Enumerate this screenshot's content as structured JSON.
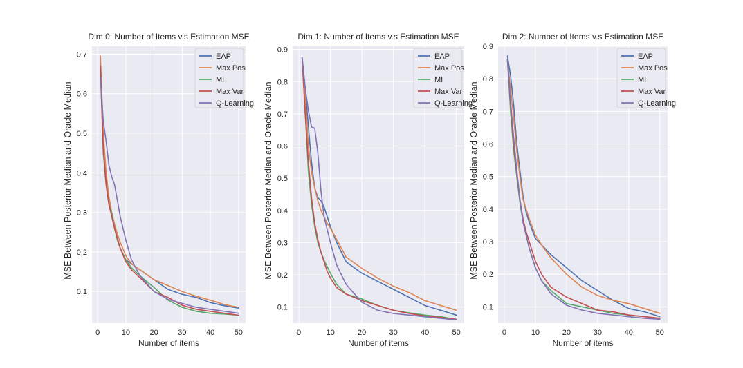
{
  "chart_data": [
    {
      "type": "line",
      "title": "Dim 0: Number of Items v.s Estimation MSE",
      "xlabel": "Number of items",
      "ylabel": "MSE Between Posterior Median and Oracle Median",
      "xlim": [
        -2,
        52.5
      ],
      "ylim": [
        0.02,
        0.72
      ],
      "xticks": [
        0,
        10,
        20,
        30,
        40,
        50
      ],
      "yticks": [
        0.1,
        0.2,
        0.3,
        0.4,
        0.5,
        0.6,
        0.7
      ],
      "legend_location": "top-right",
      "x": [
        1,
        2,
        3,
        4,
        5,
        6,
        7,
        8,
        10,
        12,
        15,
        20,
        25,
        30,
        35,
        40,
        45,
        50
      ],
      "series": [
        {
          "name": "EAP",
          "color": "#4c72b0",
          "values": [
            0.665,
            0.47,
            0.38,
            0.33,
            0.29,
            0.26,
            0.23,
            0.21,
            0.18,
            0.17,
            0.155,
            0.13,
            0.105,
            0.093,
            0.085,
            0.072,
            0.064,
            0.058
          ]
        },
        {
          "name": "Max Pos",
          "color": "#dd8452",
          "values": [
            0.695,
            0.5,
            0.4,
            0.34,
            0.3,
            0.27,
            0.245,
            0.225,
            0.19,
            0.17,
            0.155,
            0.13,
            0.115,
            0.1,
            0.088,
            0.078,
            0.067,
            0.06
          ]
        },
        {
          "name": "MI",
          "color": "#55a868",
          "values": [
            0.66,
            0.45,
            0.37,
            0.32,
            0.3,
            0.26,
            0.23,
            0.21,
            0.18,
            0.16,
            0.14,
            0.11,
            0.078,
            0.06,
            0.05,
            0.045,
            0.043,
            0.04
          ]
        },
        {
          "name": "Max Var",
          "color": "#c44e52",
          "values": [
            0.67,
            0.46,
            0.37,
            0.32,
            0.29,
            0.26,
            0.235,
            0.21,
            0.175,
            0.155,
            0.135,
            0.1,
            0.085,
            0.065,
            0.055,
            0.05,
            0.045,
            0.04
          ]
        },
        {
          "name": "Q-Learning",
          "color": "#8172b3",
          "values": [
            0.64,
            0.53,
            0.48,
            0.42,
            0.39,
            0.37,
            0.33,
            0.29,
            0.23,
            0.18,
            0.14,
            0.1,
            0.08,
            0.07,
            0.06,
            0.055,
            0.05,
            0.045
          ]
        }
      ]
    },
    {
      "type": "line",
      "title": "Dim 1: Number of Items v.s Estimation MSE",
      "xlabel": "Number of items",
      "ylabel": "MSE Between Posterior Median and Oracle Median",
      "xlim": [
        -2,
        52.5
      ],
      "ylim": [
        0.05,
        0.91
      ],
      "xticks": [
        0,
        10,
        20,
        30,
        40,
        50
      ],
      "yticks": [
        0.1,
        0.2,
        0.3,
        0.4,
        0.5,
        0.6,
        0.7,
        0.8,
        0.9
      ],
      "legend_location": "top-right",
      "x": [
        1,
        2,
        3,
        4,
        5,
        6,
        7,
        8,
        9,
        10,
        12,
        15,
        20,
        25,
        30,
        35,
        40,
        45,
        50
      ],
      "series": [
        {
          "name": "EAP",
          "color": "#4c72b0",
          "values": [
            0.875,
            0.78,
            0.66,
            0.55,
            0.47,
            0.44,
            0.43,
            0.41,
            0.38,
            0.35,
            0.3,
            0.24,
            0.205,
            0.18,
            0.155,
            0.13,
            0.105,
            0.09,
            0.075
          ]
        },
        {
          "name": "Max Pos",
          "color": "#dd8452",
          "values": [
            0.875,
            0.75,
            0.6,
            0.52,
            0.47,
            0.43,
            0.4,
            0.38,
            0.36,
            0.345,
            0.31,
            0.255,
            0.22,
            0.19,
            0.165,
            0.145,
            0.12,
            0.105,
            0.09
          ]
        },
        {
          "name": "MI",
          "color": "#55a868",
          "values": [
            0.875,
            0.7,
            0.52,
            0.42,
            0.35,
            0.3,
            0.27,
            0.245,
            0.225,
            0.205,
            0.17,
            0.14,
            0.125,
            0.105,
            0.09,
            0.082,
            0.075,
            0.07,
            0.062
          ]
        },
        {
          "name": "Max Var",
          "color": "#c44e52",
          "values": [
            0.875,
            0.7,
            0.55,
            0.44,
            0.36,
            0.31,
            0.27,
            0.24,
            0.21,
            0.19,
            0.16,
            0.14,
            0.12,
            0.105,
            0.09,
            0.08,
            0.072,
            0.068,
            0.062
          ]
        },
        {
          "name": "Q-Learning",
          "color": "#8172b3",
          "values": [
            0.875,
            0.78,
            0.71,
            0.66,
            0.655,
            0.58,
            0.46,
            0.38,
            0.34,
            0.3,
            0.23,
            0.17,
            0.115,
            0.09,
            0.08,
            0.075,
            0.07,
            0.065,
            0.06
          ]
        }
      ]
    },
    {
      "type": "line",
      "title": "Dim 2: Number of Items v.s Estimation MSE",
      "xlabel": "Number of items",
      "ylabel": "MSE Between Posterior Median and Oracle Median",
      "xlim": [
        -2,
        52.5
      ],
      "ylim": [
        0.05,
        0.9
      ],
      "xticks": [
        0,
        10,
        20,
        30,
        40,
        50
      ],
      "yticks": [
        0.1,
        0.2,
        0.3,
        0.4,
        0.5,
        0.6,
        0.7,
        0.8,
        0.9
      ],
      "legend_location": "top-right",
      "x": [
        1,
        2,
        3,
        4,
        5,
        6,
        7,
        8,
        10,
        12,
        15,
        20,
        25,
        30,
        35,
        40,
        45,
        50
      ],
      "series": [
        {
          "name": "EAP",
          "color": "#4c72b0",
          "values": [
            0.87,
            0.81,
            0.72,
            0.6,
            0.52,
            0.44,
            0.39,
            0.36,
            0.31,
            0.29,
            0.26,
            0.22,
            0.18,
            0.15,
            0.12,
            0.095,
            0.085,
            0.07
          ]
        },
        {
          "name": "Max Pos",
          "color": "#dd8452",
          "values": [
            0.855,
            0.77,
            0.68,
            0.58,
            0.5,
            0.43,
            0.4,
            0.37,
            0.32,
            0.29,
            0.25,
            0.2,
            0.16,
            0.135,
            0.12,
            0.11,
            0.095,
            0.08
          ]
        },
        {
          "name": "MI",
          "color": "#55a868",
          "values": [
            0.86,
            0.7,
            0.58,
            0.5,
            0.42,
            0.36,
            0.32,
            0.28,
            0.22,
            0.18,
            0.15,
            0.11,
            0.1,
            0.09,
            0.08,
            0.075,
            0.07,
            0.065
          ]
        },
        {
          "name": "Max Var",
          "color": "#c44e52",
          "values": [
            0.86,
            0.72,
            0.6,
            0.51,
            0.43,
            0.37,
            0.33,
            0.3,
            0.24,
            0.2,
            0.16,
            0.13,
            0.11,
            0.09,
            0.085,
            0.075,
            0.07,
            0.065
          ]
        },
        {
          "name": "Q-Learning",
          "color": "#8172b3",
          "values": [
            0.86,
            0.73,
            0.62,
            0.52,
            0.43,
            0.36,
            0.32,
            0.28,
            0.22,
            0.18,
            0.14,
            0.105,
            0.09,
            0.08,
            0.075,
            0.07,
            0.065,
            0.062
          ]
        }
      ]
    }
  ]
}
